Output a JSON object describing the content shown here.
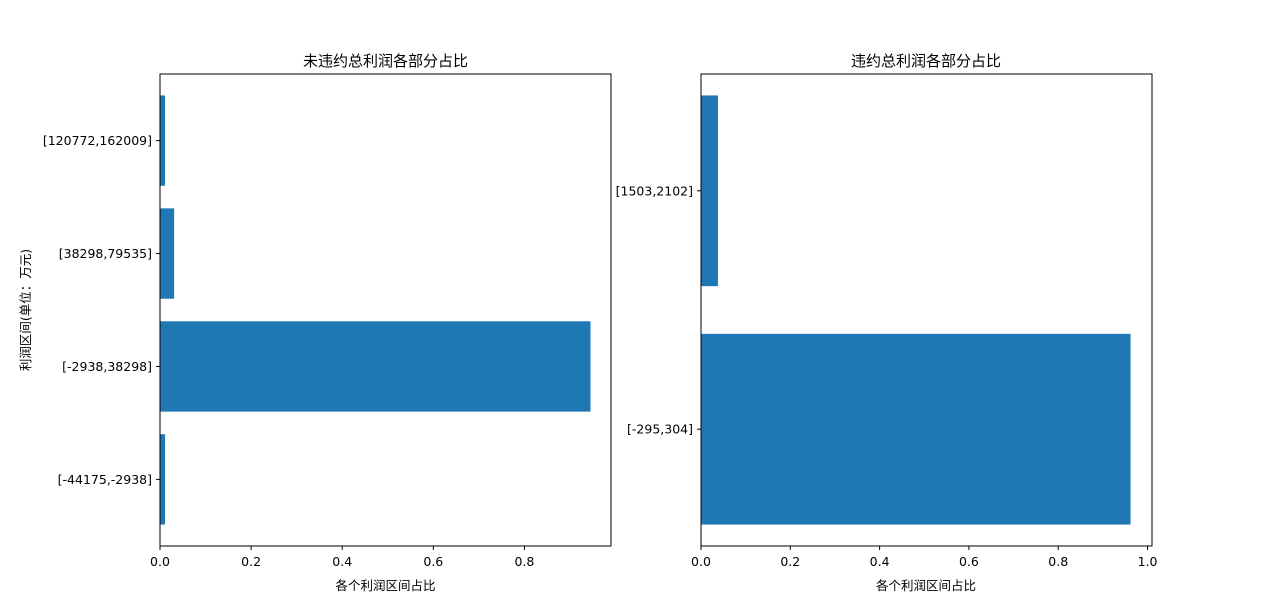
{
  "chart_data": [
    {
      "type": "bar",
      "orientation": "horizontal",
      "title": "未违约总利润各部分占比",
      "xlabel": "各个利润区间占比",
      "ylabel": "利润区间(单位：万元)",
      "categories": [
        "[-44175,-2938]",
        "[-2938,38298]",
        "[38298,79535]",
        "[120772,162009]"
      ],
      "values": [
        0.011,
        0.945,
        0.031,
        0.011
      ],
      "xlim": [
        0,
        0.99
      ],
      "xticks": [
        0.0,
        0.2,
        0.4,
        0.6,
        0.8
      ],
      "xtick_labels": [
        "0.0",
        "0.2",
        "0.4",
        "0.6",
        "0.8"
      ],
      "bar_color": "#1f77b4",
      "grid": false
    },
    {
      "type": "bar",
      "orientation": "horizontal",
      "title": "违约总利润各部分占比",
      "xlabel": "各个利润区间占比",
      "ylabel": "",
      "categories": [
        "[-295,304]",
        "[1503,2102]"
      ],
      "values": [
        0.962,
        0.038
      ],
      "xlim": [
        0,
        1.01
      ],
      "xticks": [
        0.0,
        0.2,
        0.4,
        0.6,
        0.8,
        1.0
      ],
      "xtick_labels": [
        "0.0",
        "0.2",
        "0.4",
        "0.6",
        "0.8",
        "1.0"
      ],
      "bar_color": "#1f77b4",
      "grid": false
    }
  ]
}
